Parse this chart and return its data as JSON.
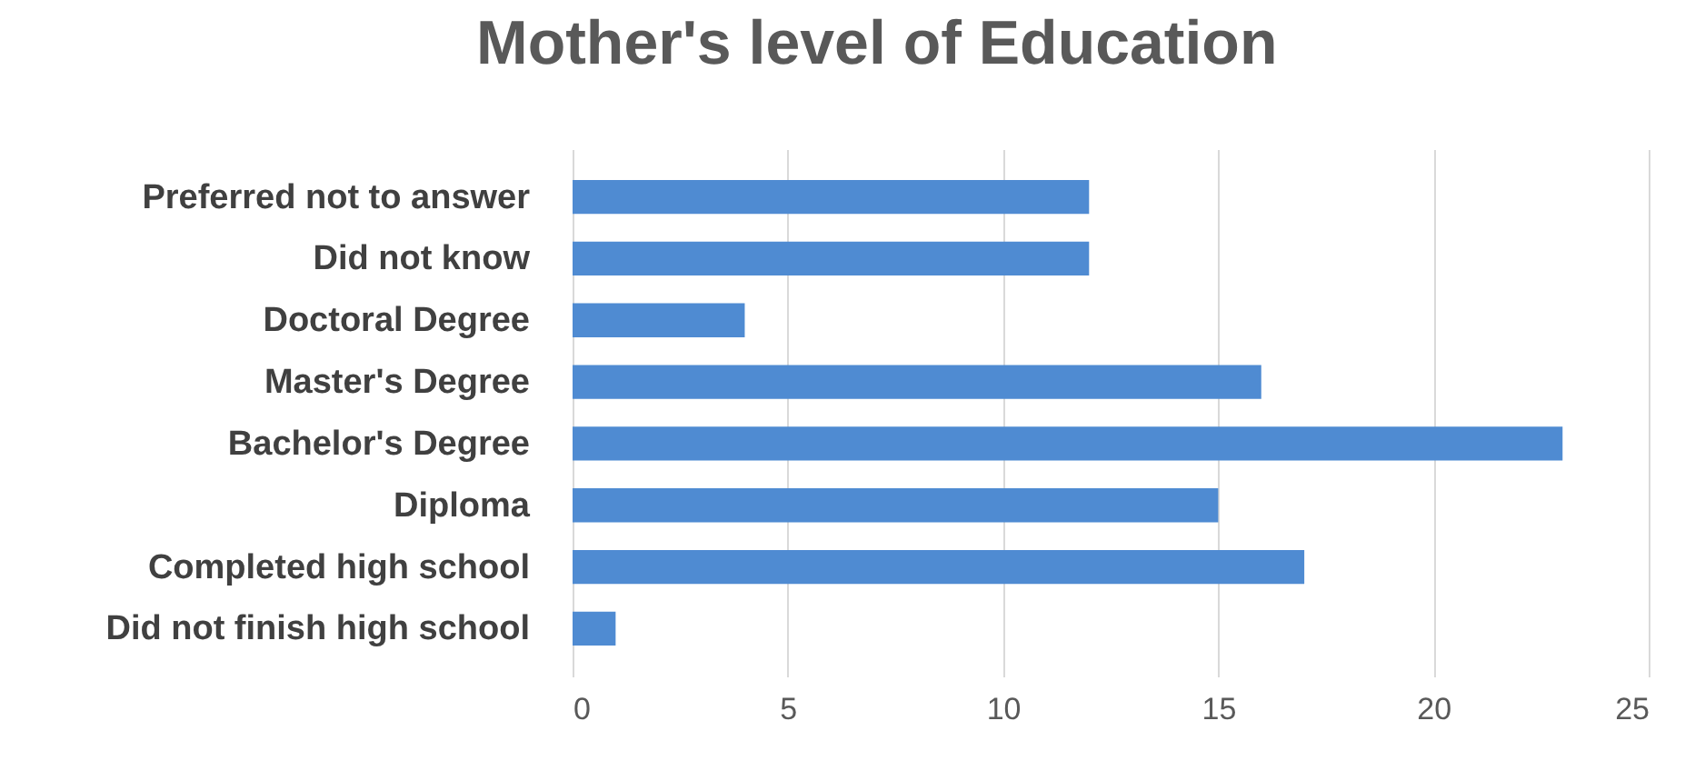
{
  "chart_data": {
    "type": "bar",
    "orientation": "horizontal",
    "title": "Mother's level of Education",
    "categories": [
      "Preferred not to answer",
      "Did not know",
      "Doctoral Degree",
      "Master's Degree",
      "Bachelor's Degree",
      "Diploma",
      "Completed high school",
      "Did not finish high school"
    ],
    "values": [
      12,
      12,
      4,
      16,
      23,
      15,
      17,
      1
    ],
    "color": "#4f8bd2",
    "xlim": [
      0,
      25
    ],
    "xticks": [
      0,
      5,
      10,
      15,
      20,
      25
    ],
    "grid": "x"
  }
}
